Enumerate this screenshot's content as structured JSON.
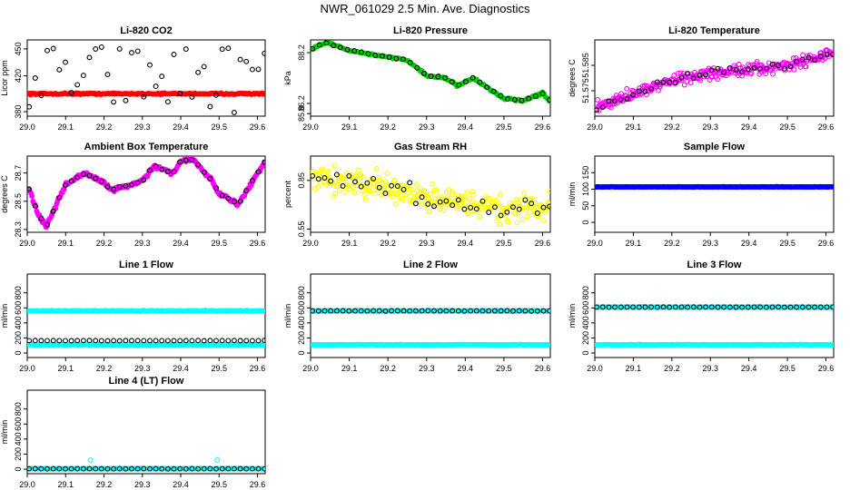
{
  "title": "NWR_061029  2.5 Min. Ave. Diagnostics",
  "colors": {
    "black": "#000000",
    "red": "#ff0000",
    "green": "#00cc00",
    "magenta": "#ff00ff",
    "yellow": "#ffff00",
    "blue": "#0000ff",
    "cyan": "#00ffff"
  },
  "chart_data": [
    {
      "id": "co2",
      "type": "scatter",
      "title": "Li-820 CO2",
      "ylabel": "Licor ppm",
      "xlim": [
        29.0,
        29.62
      ],
      "xticks": [
        "29.0",
        "29.1",
        "29.2",
        "29.3",
        "29.4",
        "29.5",
        "29.6"
      ],
      "ylim": [
        375,
        460
      ],
      "yticks": [
        {
          "v": 380,
          "label": "380"
        },
        {
          "v": 420,
          "label": "420"
        },
        {
          "v": 450,
          "label": "450"
        }
      ],
      "series": [
        {
          "name": "co2-avg",
          "color": "red",
          "gen": "const",
          "v": 400,
          "jitter": 1.2,
          "n": 180,
          "filled": true
        },
        {
          "name": "co2-marks",
          "color": "black",
          "gen": "random",
          "lo": 378,
          "hi": 456,
          "n": 40,
          "filled": false
        }
      ]
    },
    {
      "id": "pressure",
      "type": "scatter",
      "title": "Li-820 Pressure",
      "ylabel": "kPa",
      "xlim": [
        29.0,
        29.62
      ],
      "xticks": [
        "29.0",
        "29.1",
        "29.2",
        "29.3",
        "29.4",
        "29.5",
        "29.6"
      ],
      "ylim": [
        85.7,
        88.7
      ],
      "yticks": [
        {
          "v": 85.8,
          "label": "85.8"
        },
        {
          "v": 86.2,
          "label": "86.2"
        },
        {
          "v": 88.2,
          "label": "88.2"
        }
      ],
      "series": [
        {
          "name": "pressure",
          "color": "green",
          "gen": "curve",
          "x": [
            29.0,
            29.04,
            29.1,
            29.15,
            29.25,
            29.3,
            29.35,
            29.38,
            29.42,
            29.45,
            29.5,
            29.55,
            29.6,
            29.62
          ],
          "y": [
            88.3,
            88.6,
            88.3,
            88.15,
            87.9,
            87.3,
            87.2,
            86.9,
            87.2,
            86.9,
            86.4,
            86.3,
            86.6,
            86.3
          ],
          "jitter": 0.06,
          "n": 170,
          "filled": true
        },
        {
          "name": "pressure-marks",
          "color": "black",
          "gen": "curve",
          "x": [
            29.0,
            29.04,
            29.1,
            29.15,
            29.25,
            29.3,
            29.35,
            29.38,
            29.42,
            29.45,
            29.5,
            29.55,
            29.6,
            29.62
          ],
          "y": [
            88.3,
            88.6,
            88.3,
            88.15,
            87.9,
            87.3,
            87.2,
            86.9,
            87.2,
            86.9,
            86.4,
            86.3,
            86.6,
            86.3
          ],
          "jitter": 0.03,
          "n": 35,
          "filled": false
        }
      ]
    },
    {
      "id": "temperature",
      "type": "scatter",
      "title": "Li-820 Temperature",
      "ylabel": "degrees C",
      "xlim": [
        29.0,
        29.62
      ],
      "xticks": [
        "29.0",
        "29.1",
        "29.2",
        "29.3",
        "29.4",
        "29.5",
        "29.6"
      ],
      "ylim": [
        51.565,
        51.595
      ],
      "yticks": [
        {
          "v": 51.575,
          "label": "51.575"
        },
        {
          "v": 51.585,
          "label": "51.585"
        }
      ],
      "series": [
        {
          "name": "temperature",
          "color": "magenta",
          "gen": "curve",
          "x": [
            29.0,
            29.1,
            29.2,
            29.3,
            29.4,
            29.5,
            29.62
          ],
          "y": [
            51.568,
            51.574,
            51.579,
            51.582,
            51.583,
            51.585,
            51.59
          ],
          "jitter": 0.0035,
          "n": 300,
          "filled": false
        },
        {
          "name": "temperature-marks",
          "color": "black",
          "gen": "curve",
          "x": [
            29.0,
            29.1,
            29.2,
            29.3,
            29.4,
            29.5,
            29.62
          ],
          "y": [
            51.568,
            51.574,
            51.579,
            51.582,
            51.583,
            51.585,
            51.59
          ],
          "jitter": 0.0025,
          "n": 40,
          "filled": false
        }
      ]
    },
    {
      "id": "ambient",
      "type": "scatter",
      "title": "Ambient Box Temperature",
      "ylabel": "degrees C",
      "xlim": [
        29.0,
        29.62
      ],
      "xticks": [
        "29.0",
        "29.1",
        "29.2",
        "29.3",
        "29.4",
        "29.5",
        "29.6"
      ],
      "ylim": [
        28.28,
        28.82
      ],
      "yticks": [
        {
          "v": 28.3,
          "label": "28.3"
        },
        {
          "v": 28.5,
          "label": "28.5"
        },
        {
          "v": 28.7,
          "label": "28.7"
        }
      ],
      "series": [
        {
          "name": "ambient",
          "color": "magenta",
          "gen": "curve",
          "x": [
            29.0,
            29.03,
            29.05,
            29.1,
            29.15,
            29.2,
            29.22,
            29.3,
            29.33,
            29.38,
            29.4,
            29.43,
            29.48,
            29.5,
            29.55,
            29.6,
            29.62
          ],
          "y": [
            28.62,
            28.4,
            28.32,
            28.62,
            28.7,
            28.63,
            28.58,
            28.64,
            28.75,
            28.7,
            28.78,
            28.8,
            28.65,
            28.55,
            28.48,
            28.7,
            28.78
          ],
          "jitter": 0.02,
          "n": 250,
          "filled": true
        },
        {
          "name": "ambient-marks",
          "color": "black",
          "gen": "curve",
          "x": [
            29.0,
            29.03,
            29.05,
            29.1,
            29.15,
            29.2,
            29.22,
            29.3,
            29.33,
            29.38,
            29.4,
            29.43,
            29.48,
            29.5,
            29.55,
            29.6,
            29.62
          ],
          "y": [
            28.62,
            28.4,
            28.32,
            28.62,
            28.7,
            28.63,
            28.58,
            28.64,
            28.75,
            28.7,
            28.78,
            28.8,
            28.65,
            28.55,
            28.48,
            28.7,
            28.78
          ],
          "jitter": 0.01,
          "n": 40,
          "filled": false
        }
      ]
    },
    {
      "id": "rh",
      "type": "scatter",
      "title": "Gas Stream RH",
      "ylabel": "percent",
      "xlim": [
        29.0,
        29.62
      ],
      "xticks": [
        "29.0",
        "29.1",
        "29.2",
        "29.3",
        "29.4",
        "29.5",
        "29.6"
      ],
      "ylim": [
        0.53,
        1.0
      ],
      "yticks": [
        {
          "v": 0.55,
          "label": "0.55"
        },
        {
          "v": 0.85,
          "label": "0.85"
        }
      ],
      "series": [
        {
          "name": "rh",
          "color": "yellow",
          "gen": "curve",
          "x": [
            29.0,
            29.1,
            29.2,
            29.3,
            29.4,
            29.5,
            29.62
          ],
          "y": [
            0.86,
            0.84,
            0.8,
            0.74,
            0.7,
            0.68,
            0.7
          ],
          "jitter": 0.12,
          "n": 300,
          "filled": false
        },
        {
          "name": "rh-marks",
          "color": "black",
          "gen": "curve",
          "x": [
            29.0,
            29.1,
            29.2,
            29.3,
            29.4,
            29.5,
            29.62
          ],
          "y": [
            0.86,
            0.84,
            0.8,
            0.74,
            0.7,
            0.68,
            0.7
          ],
          "jitter": 0.1,
          "n": 40,
          "filled": false
        }
      ]
    },
    {
      "id": "sample",
      "type": "scatter",
      "title": "Sample Flow",
      "ylabel": "ml/min",
      "xlim": [
        29.0,
        29.62
      ],
      "xticks": [
        "29.0",
        "29.1",
        "29.2",
        "29.3",
        "29.4",
        "29.5",
        "29.6"
      ],
      "ylim": [
        -30,
        200
      ],
      "yticks": [
        {
          "v": 0,
          "label": "0"
        },
        {
          "v": 50,
          "label": "50"
        },
        {
          "v": 100,
          "label": "100"
        },
        {
          "v": 150,
          "label": "150"
        }
      ],
      "series": [
        {
          "name": "sample-marks",
          "color": "black",
          "gen": "const",
          "v": 107,
          "jitter": 1,
          "n": 40,
          "filled": false
        },
        {
          "name": "sample",
          "color": "blue",
          "gen": "const",
          "v": 107,
          "jitter": 1,
          "n": 200,
          "filled": true
        }
      ]
    },
    {
      "id": "line1",
      "type": "scatter",
      "title": "Line 1 Flow",
      "ylabel": "ml/min",
      "xlim": [
        29.0,
        29.62
      ],
      "xticks": [
        "29.0",
        "29.1",
        "29.2",
        "29.3",
        "29.4",
        "29.5",
        "29.6"
      ],
      "ylim": [
        -60,
        1050
      ],
      "yticks": [
        {
          "v": 0,
          "label": "0"
        },
        {
          "v": 200,
          "label": "200"
        },
        {
          "v": 400,
          "label": "400"
        },
        {
          "v": 600,
          "label": "600"
        },
        {
          "v": 800,
          "label": "800"
        }
      ],
      "series": [
        {
          "name": "line1-high",
          "color": "cyan",
          "gen": "const",
          "v": 560,
          "jitter": 8,
          "n": 200,
          "filled": true
        },
        {
          "name": "line1-low",
          "color": "cyan",
          "gen": "const",
          "v": 110,
          "jitter": 5,
          "n": 200,
          "filled": true
        },
        {
          "name": "line1-marks",
          "color": "black",
          "gen": "const",
          "v": 165,
          "jitter": 3,
          "n": 40,
          "filled": false
        }
      ]
    },
    {
      "id": "line2",
      "type": "scatter",
      "title": "Line 2 Flow",
      "ylabel": "ml/min",
      "xlim": [
        29.0,
        29.62
      ],
      "xticks": [
        "29.0",
        "29.1",
        "29.2",
        "29.3",
        "29.4",
        "29.5",
        "29.6"
      ],
      "ylim": [
        -60,
        1050
      ],
      "yticks": [
        {
          "v": 0,
          "label": "0"
        },
        {
          "v": 200,
          "label": "200"
        },
        {
          "v": 400,
          "label": "400"
        },
        {
          "v": 600,
          "label": "600"
        },
        {
          "v": 800,
          "label": "800"
        }
      ],
      "series": [
        {
          "name": "line2-high",
          "color": "cyan",
          "gen": "const",
          "v": 560,
          "jitter": 8,
          "n": 200,
          "filled": true
        },
        {
          "name": "line2-low",
          "color": "cyan",
          "gen": "const",
          "v": 110,
          "jitter": 5,
          "n": 200,
          "filled": true
        },
        {
          "name": "line2-marks",
          "color": "black",
          "gen": "const",
          "v": 560,
          "jitter": 3,
          "n": 40,
          "filled": false
        }
      ]
    },
    {
      "id": "line3",
      "type": "scatter",
      "title": "Line 3 Flow",
      "ylabel": "ml/min",
      "xlim": [
        29.0,
        29.62
      ],
      "xticks": [
        "29.0",
        "29.1",
        "29.2",
        "29.3",
        "29.4",
        "29.5",
        "29.6"
      ],
      "ylim": [
        -60,
        1050
      ],
      "yticks": [
        {
          "v": 0,
          "label": "0"
        },
        {
          "v": 200,
          "label": "200"
        },
        {
          "v": 400,
          "label": "400"
        },
        {
          "v": 600,
          "label": "600"
        },
        {
          "v": 800,
          "label": "800"
        }
      ],
      "series": [
        {
          "name": "line3-high",
          "color": "cyan",
          "gen": "const",
          "v": 610,
          "jitter": 8,
          "n": 200,
          "filled": true
        },
        {
          "name": "line3-low",
          "color": "cyan",
          "gen": "const",
          "v": 110,
          "jitter": 5,
          "n": 200,
          "filled": true
        },
        {
          "name": "line3-marks",
          "color": "black",
          "gen": "const",
          "v": 610,
          "jitter": 3,
          "n": 40,
          "filled": false
        }
      ]
    },
    {
      "id": "line4",
      "type": "scatter",
      "title": "Line 4 (LT) Flow",
      "ylabel": "ml/min",
      "xlim": [
        29.0,
        29.62
      ],
      "xticks": [
        "29.0",
        "29.1",
        "29.2",
        "29.3",
        "29.4",
        "29.5",
        "29.6"
      ],
      "ylim": [
        -60,
        1050
      ],
      "yticks": [
        {
          "v": 0,
          "label": "0"
        },
        {
          "v": 200,
          "label": "200"
        },
        {
          "v": 400,
          "label": "400"
        },
        {
          "v": 600,
          "label": "600"
        },
        {
          "v": 800,
          "label": "800"
        }
      ],
      "series": [
        {
          "name": "line4",
          "color": "cyan",
          "gen": "const",
          "v": 5,
          "jitter": 3,
          "n": 200,
          "filled": true
        },
        {
          "name": "line4-marks",
          "color": "black",
          "gen": "const",
          "v": 5,
          "jitter": 2,
          "n": 40,
          "filled": false
        },
        {
          "name": "line4-spikes",
          "color": "cyan",
          "gen": "points",
          "x": [
            29.165,
            29.495
          ],
          "y": [
            120,
            120
          ],
          "filled": false
        }
      ]
    }
  ]
}
